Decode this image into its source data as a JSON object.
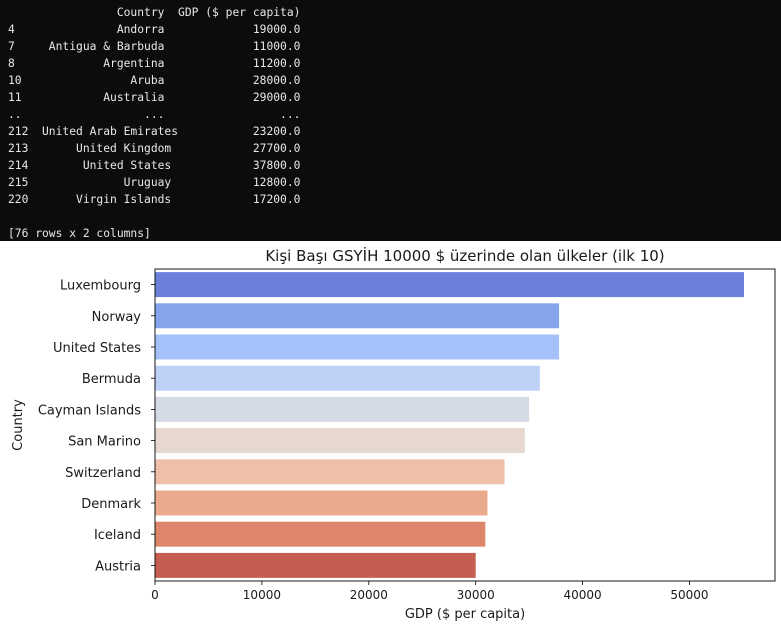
{
  "console": {
    "lines": [
      "                Country  GDP ($ per capita)",
      "4               Andorra             19000.0",
      "7     Antigua & Barbuda             11000.0",
      "8             Argentina             11200.0",
      "10                Aruba             28000.0",
      "11            Australia             29000.0",
      "..                  ...                 ...",
      "212  United Arab Emirates           23200.0",
      "213       United Kingdom            27700.0",
      "214        United States            37800.0",
      "215              Uruguay            12800.0",
      "220       Virgin Islands            17200.0",
      "",
      "[76 rows x 2 columns]"
    ]
  },
  "chart_data": {
    "type": "bar",
    "orientation": "horizontal",
    "title": "Kişi Başı GSYİH 10000 $ üzerinde olan ülkeler (ilk 10)",
    "xlabel": "GDP ($ per capita)",
    "ylabel": "Country",
    "categories": [
      "Luxembourg",
      "Norway",
      "United States",
      "Bermuda",
      "Cayman Islands",
      "San Marino",
      "Switzerland",
      "Denmark",
      "Iceland",
      "Austria"
    ],
    "values": [
      55100,
      37800,
      37800,
      36000,
      35000,
      34600,
      32700,
      31100,
      30900,
      30000
    ],
    "xlim": [
      0,
      58000
    ],
    "xticks": [
      0,
      10000,
      20000,
      30000,
      40000,
      50000
    ],
    "palette": "coolwarm",
    "colors": [
      "#6b80db",
      "#87a5ec",
      "#a5c1f9",
      "#bdd1f6",
      "#d4dbe6",
      "#e6d7cf",
      "#efc0a8",
      "#ebaa8c",
      "#de866c",
      "#c65d51"
    ],
    "grid": false
  }
}
